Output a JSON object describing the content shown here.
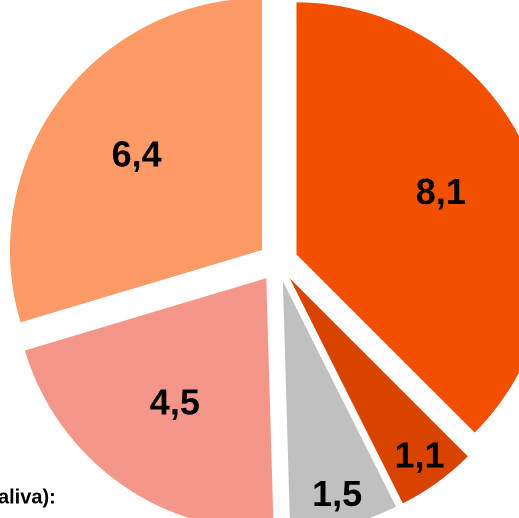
{
  "chart_data": {
    "type": "pie",
    "categories": [
      null,
      null,
      null,
      null,
      null
    ],
    "values": [
      8.1,
      1.1,
      1.5,
      4.5,
      6.4
    ],
    "value_labels": [
      "8,1",
      "1,1",
      "1,5",
      "4,5",
      "6,4"
    ],
    "colors": [
      "#f25000",
      "#d94300",
      "#c0c0c0",
      "#f4978a",
      "#fd9a66"
    ],
    "annotation": "aliva):"
  }
}
